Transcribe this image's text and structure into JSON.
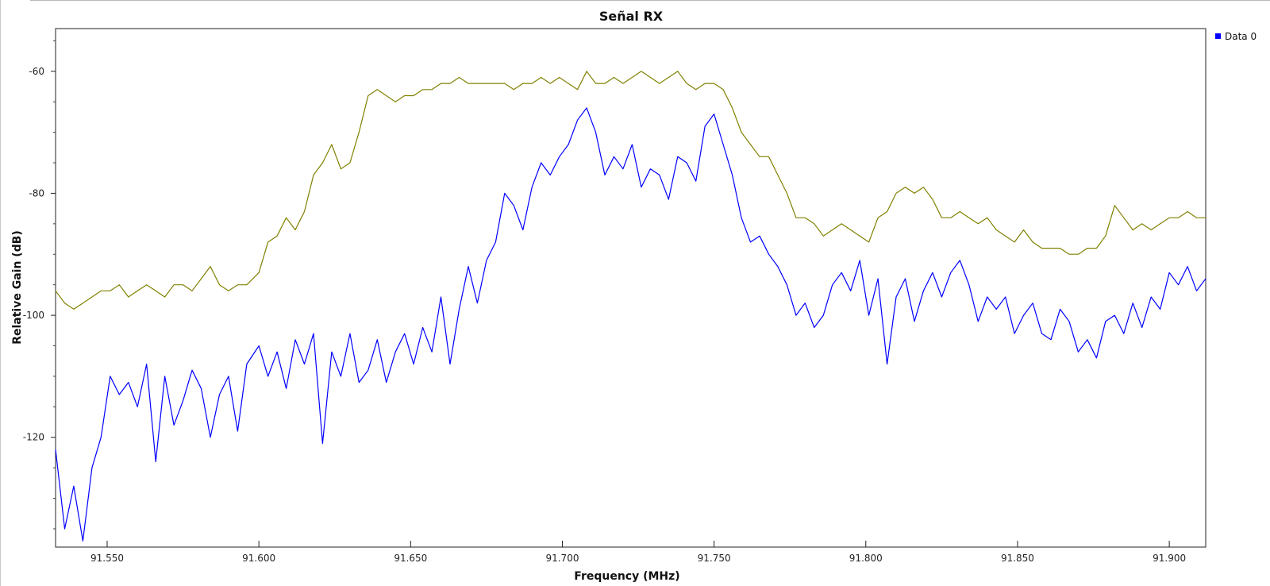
{
  "chart_data": {
    "type": "line",
    "title": "Señal RX",
    "xlabel": "Frequency (MHz)",
    "ylabel": "Relative Gain (dB)",
    "xlim": [
      91.533,
      91.912
    ],
    "ylim": [
      -138,
      -53
    ],
    "x_ticks": [
      "91.550",
      "91.600",
      "91.650",
      "91.700",
      "91.750",
      "91.800",
      "91.850",
      "91.900"
    ],
    "x_tick_values": [
      91.55,
      91.6,
      91.65,
      91.7,
      91.75,
      91.8,
      91.85,
      91.9
    ],
    "y_ticks": [
      "-60",
      "-80",
      "-100",
      "-120"
    ],
    "y_tick_values": [
      -60,
      -80,
      -100,
      -120
    ],
    "grid": false,
    "legend_position": "top-right",
    "colors": {
      "data0": "#0000ff",
      "max_hold": "#808000",
      "frame": "#222222",
      "legend_marker": "#0000ff"
    },
    "series": [
      {
        "name": "Data 0",
        "color": "#0000ff",
        "x": [
          91.533,
          91.536,
          91.539,
          91.542,
          91.545,
          91.548,
          91.551,
          91.554,
          91.557,
          91.56,
          91.563,
          91.566,
          91.569,
          91.572,
          91.575,
          91.578,
          91.581,
          91.584,
          91.587,
          91.59,
          91.593,
          91.596,
          91.6,
          91.603,
          91.606,
          91.609,
          91.612,
          91.615,
          91.618,
          91.621,
          91.624,
          91.627,
          91.63,
          91.633,
          91.636,
          91.639,
          91.642,
          91.645,
          91.648,
          91.651,
          91.654,
          91.657,
          91.66,
          91.663,
          91.666,
          91.669,
          91.672,
          91.675,
          91.678,
          91.681,
          91.684,
          91.687,
          91.69,
          91.693,
          91.696,
          91.699,
          91.702,
          91.705,
          91.708,
          91.711,
          91.714,
          91.717,
          91.72,
          91.723,
          91.726,
          91.729,
          91.732,
          91.735,
          91.738,
          91.741,
          91.744,
          91.747,
          91.75,
          91.753,
          91.756,
          91.759,
          91.762,
          91.765,
          91.768,
          91.771,
          91.774,
          91.777,
          91.78,
          91.783,
          91.786,
          91.789,
          91.792,
          91.795,
          91.798,
          91.801,
          91.804,
          91.807,
          91.81,
          91.813,
          91.816,
          91.819,
          91.822,
          91.825,
          91.828,
          91.831,
          91.834,
          91.837,
          91.84,
          91.843,
          91.846,
          91.849,
          91.852,
          91.855,
          91.858,
          91.861,
          91.864,
          91.867,
          91.87,
          91.873,
          91.876,
          91.879,
          91.882,
          91.885,
          91.888,
          91.891,
          91.894,
          91.897,
          91.9,
          91.903,
          91.906,
          91.909,
          91.912
        ],
        "values": [
          -122,
          -135,
          -128,
          -137,
          -125,
          -120,
          -110,
          -113,
          -111,
          -115,
          -108,
          -124,
          -110,
          -118,
          -114,
          -109,
          -112,
          -120,
          -113,
          -110,
          -119,
          -108,
          -105,
          -110,
          -106,
          -112,
          -104,
          -108,
          -103,
          -121,
          -106,
          -110,
          -103,
          -111,
          -109,
          -104,
          -111,
          -106,
          -103,
          -108,
          -102,
          -106,
          -97,
          -108,
          -99,
          -92,
          -98,
          -91,
          -88,
          -80,
          -82,
          -86,
          -79,
          -75,
          -77,
          -74,
          -72,
          -68,
          -66,
          -70,
          -77,
          -74,
          -76,
          -72,
          -79,
          -76,
          -77,
          -81,
          -74,
          -75,
          -78,
          -69,
          -67,
          -72,
          -77,
          -84,
          -88,
          -87,
          -90,
          -92,
          -95,
          -100,
          -98,
          -102,
          -100,
          -95,
          -93,
          -96,
          -91,
          -100,
          -94,
          -108,
          -97,
          -94,
          -101,
          -96,
          -93,
          -97,
          -93,
          -91,
          -95,
          -101,
          -97,
          -99,
          -97,
          -103,
          -100,
          -98,
          -103,
          -104,
          -99,
          -101,
          -106,
          -104,
          -107,
          -101,
          -100,
          -103,
          -98,
          -102,
          -97,
          -99,
          -93,
          -95,
          -92,
          -96,
          -94
        ]
      },
      {
        "name": "",
        "color": "#808000",
        "x": [
          91.533,
          91.536,
          91.539,
          91.542,
          91.545,
          91.548,
          91.551,
          91.554,
          91.557,
          91.56,
          91.563,
          91.566,
          91.569,
          91.572,
          91.575,
          91.578,
          91.581,
          91.584,
          91.587,
          91.59,
          91.593,
          91.596,
          91.6,
          91.603,
          91.606,
          91.609,
          91.612,
          91.615,
          91.618,
          91.621,
          91.624,
          91.627,
          91.63,
          91.633,
          91.636,
          91.639,
          91.642,
          91.645,
          91.648,
          91.651,
          91.654,
          91.657,
          91.66,
          91.663,
          91.666,
          91.669,
          91.672,
          91.675,
          91.678,
          91.681,
          91.684,
          91.687,
          91.69,
          91.693,
          91.696,
          91.699,
          91.702,
          91.705,
          91.708,
          91.711,
          91.714,
          91.717,
          91.72,
          91.723,
          91.726,
          91.729,
          91.732,
          91.735,
          91.738,
          91.741,
          91.744,
          91.747,
          91.75,
          91.753,
          91.756,
          91.759,
          91.762,
          91.765,
          91.768,
          91.771,
          91.774,
          91.777,
          91.78,
          91.783,
          91.786,
          91.789,
          91.792,
          91.795,
          91.798,
          91.801,
          91.804,
          91.807,
          91.81,
          91.813,
          91.816,
          91.819,
          91.822,
          91.825,
          91.828,
          91.831,
          91.834,
          91.837,
          91.84,
          91.843,
          91.846,
          91.849,
          91.852,
          91.855,
          91.858,
          91.861,
          91.864,
          91.867,
          91.87,
          91.873,
          91.876,
          91.879,
          91.882,
          91.885,
          91.888,
          91.891,
          91.894,
          91.897,
          91.9,
          91.903,
          91.906,
          91.909,
          91.912
        ],
        "values": [
          -96,
          -98,
          -99,
          -98,
          -97,
          -96,
          -96,
          -95,
          -97,
          -96,
          -95,
          -96,
          -97,
          -95,
          -95,
          -96,
          -94,
          -92,
          -95,
          -96,
          -95,
          -95,
          -93,
          -88,
          -87,
          -84,
          -86,
          -83,
          -77,
          -75,
          -72,
          -76,
          -75,
          -70,
          -64,
          -63,
          -64,
          -65,
          -64,
          -64,
          -63,
          -63,
          -62,
          -62,
          -61,
          -62,
          -62,
          -62,
          -62,
          -62,
          -63,
          -62,
          -62,
          -61,
          -62,
          -61,
          -62,
          -63,
          -60,
          -62,
          -62,
          -61,
          -62,
          -61,
          -60,
          -61,
          -62,
          -61,
          -60,
          -62,
          -63,
          -62,
          -62,
          -63,
          -66,
          -70,
          -72,
          -74,
          -74,
          -77,
          -80,
          -84,
          -84,
          -85,
          -87,
          -86,
          -85,
          -86,
          -87,
          -88,
          -84,
          -83,
          -80,
          -79,
          -80,
          -79,
          -81,
          -84,
          -84,
          -83,
          -84,
          -85,
          -84,
          -86,
          -87,
          -88,
          -86,
          -88,
          -89,
          -89,
          -89,
          -90,
          -90,
          -89,
          -89,
          -87,
          -82,
          -84,
          -86,
          -85,
          -86,
          -85,
          -84,
          -84,
          -83,
          -84,
          -84
        ]
      }
    ]
  }
}
